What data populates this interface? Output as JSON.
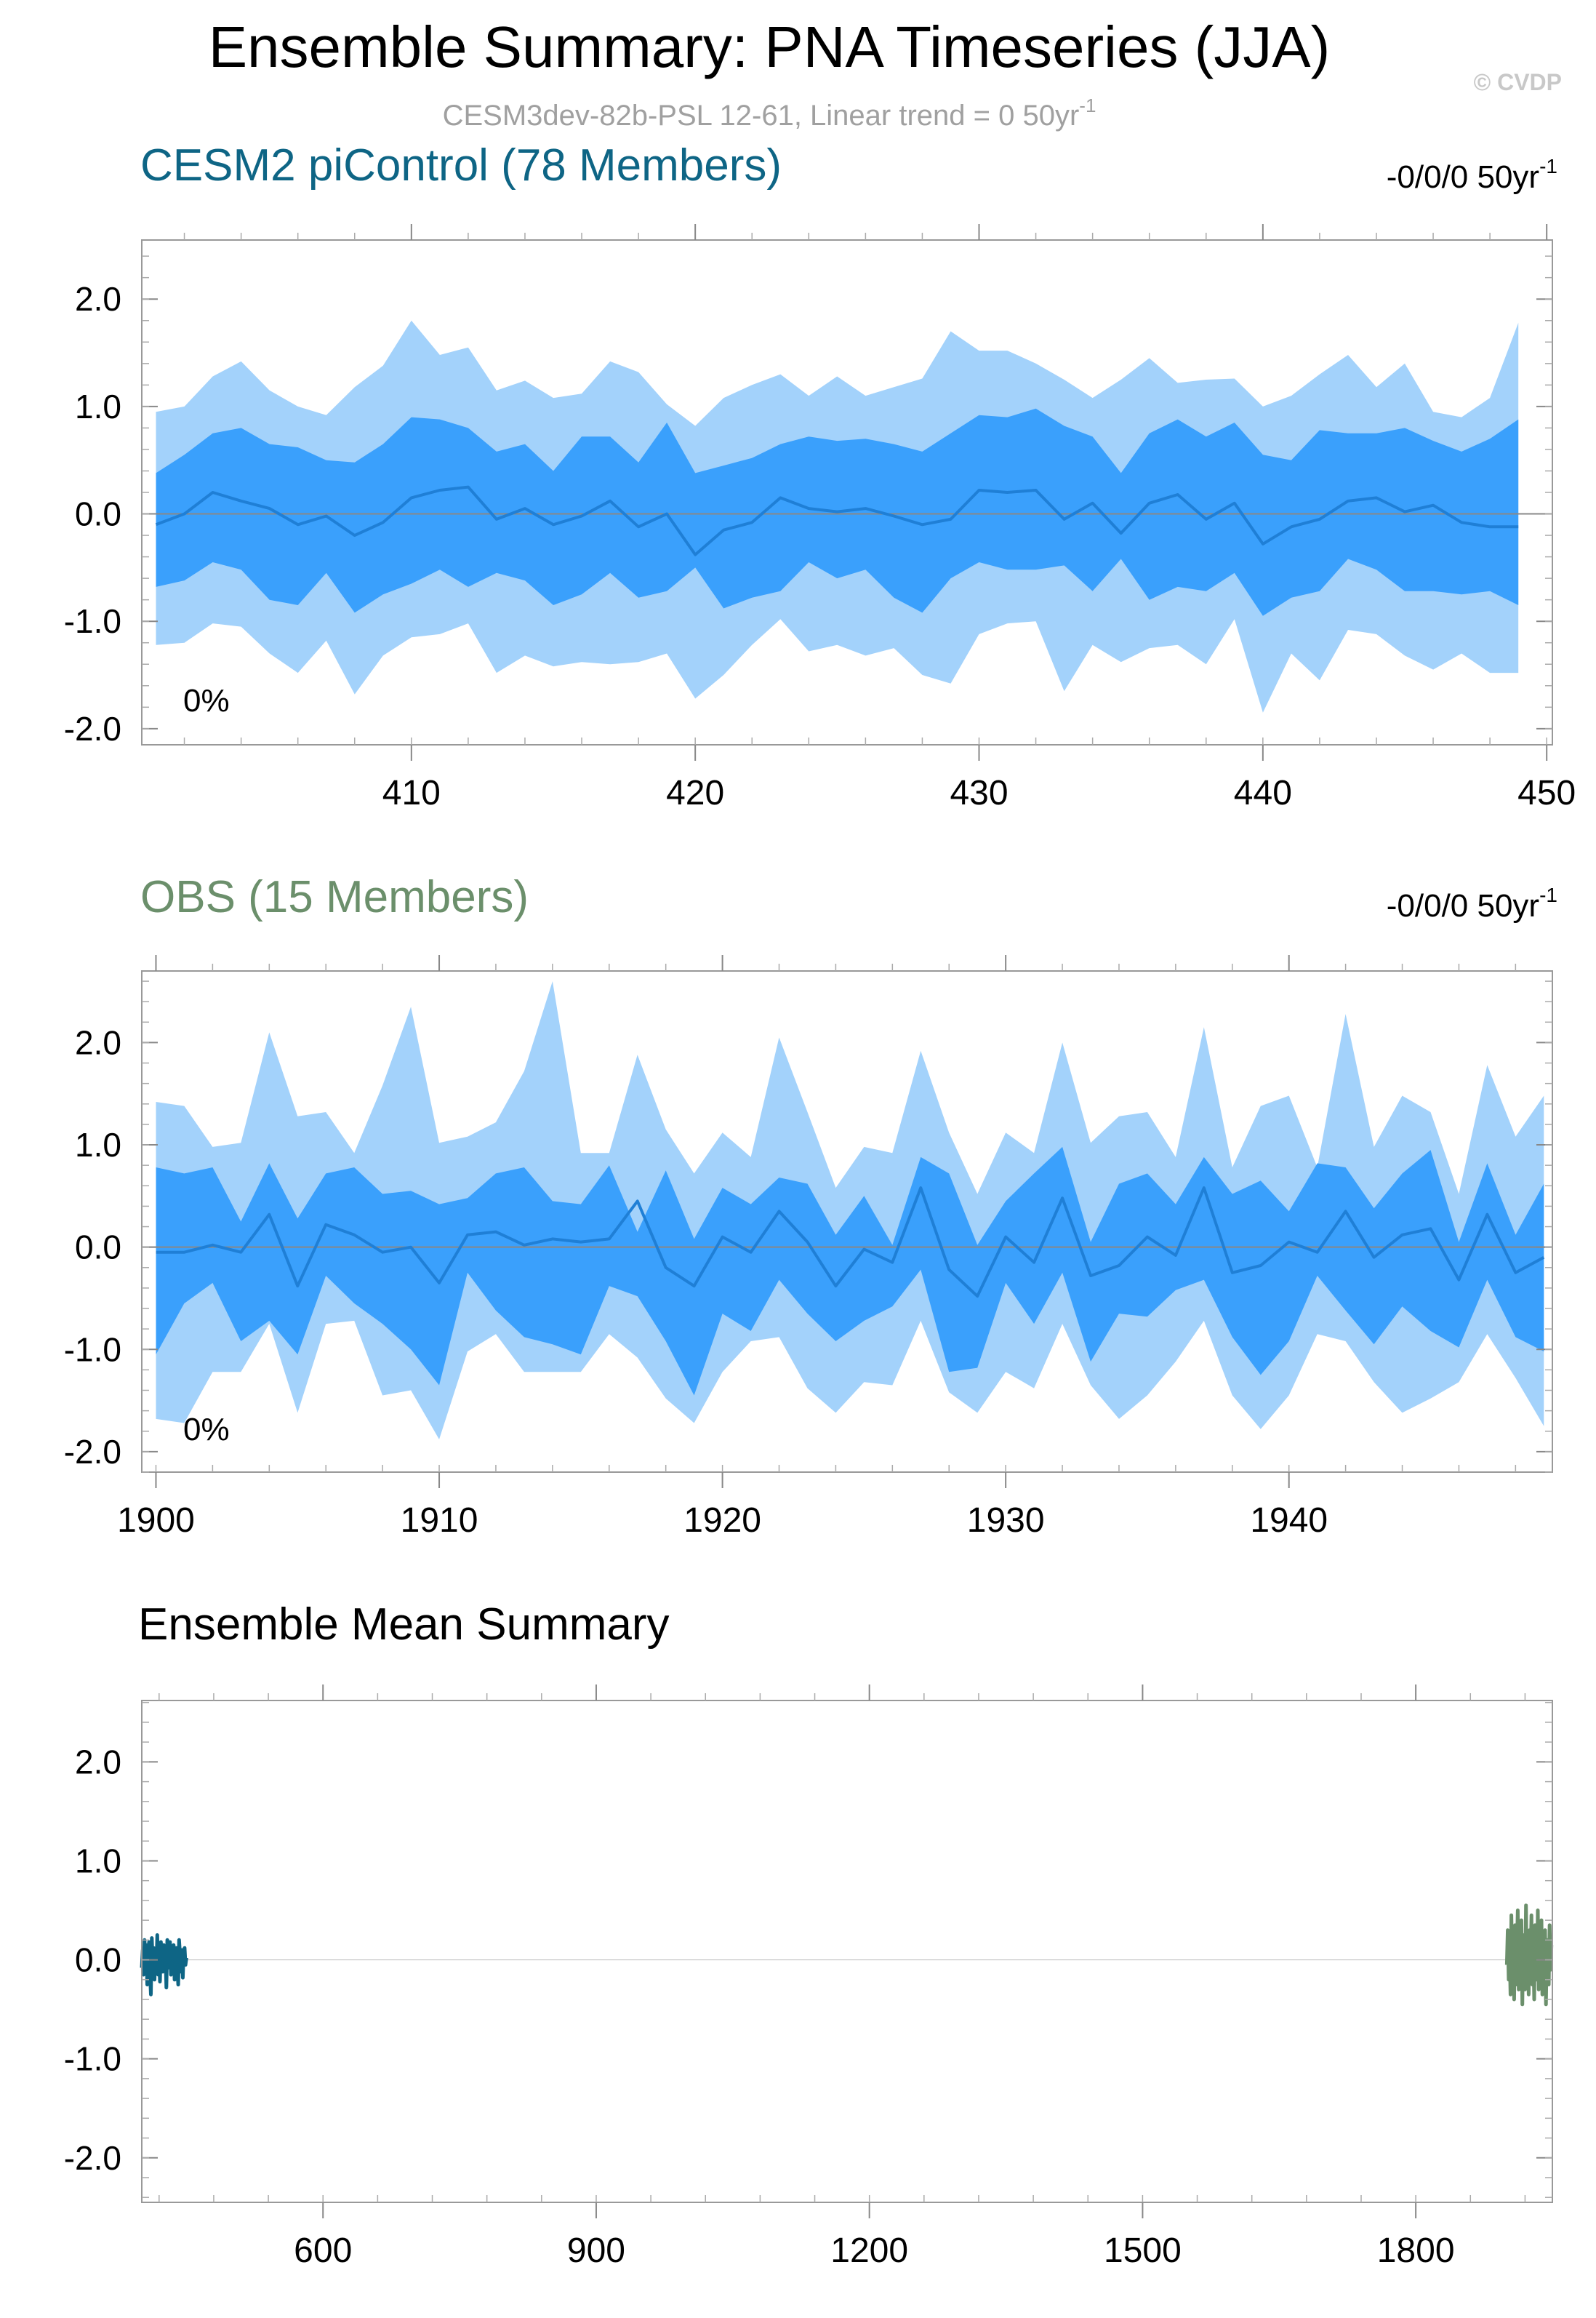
{
  "header": {
    "title": "Ensemble Summary: PNA Timeseries (JJA)",
    "subtitle_text": "CESM3dev-82b-PSL 12-61, Linear trend = 0 50yr",
    "subtitle_sup": "-1",
    "copyright": "© CVDP"
  },
  "colors": {
    "outer_band": "#a3d2fb",
    "inner_band": "#3aa0fc",
    "mean_line": "#1f7fd6",
    "zero_line": "#888888",
    "frame": "#999999",
    "cesm_color": "#0e6585",
    "obs_color": "#6b8f6b"
  },
  "chart_data": [
    {
      "type": "area",
      "name": "cesm2-picontrol-panel",
      "title": "CESM2 piControl (78 Members)",
      "trend_text": "-0/0/0 50yr",
      "trend_sup": "-1",
      "pct_label": "0%",
      "x_start": 401,
      "xlim": [
        400.5,
        450.2
      ],
      "ylim": [
        -2.15,
        2.55
      ],
      "yticks": [
        2,
        1,
        0,
        -1,
        -2
      ],
      "ytick_labels": [
        "2.0",
        "1.0",
        "0.0",
        "-1.0",
        "-2.0"
      ],
      "xticks": [
        410,
        420,
        430,
        440,
        450
      ],
      "xtick_labels": [
        "410",
        "420",
        "430",
        "440",
        "450"
      ],
      "series": [
        {
          "name": "max",
          "values": [
            0.95,
            1.0,
            1.28,
            1.42,
            1.15,
            1.0,
            0.92,
            1.18,
            1.38,
            1.8,
            1.48,
            1.55,
            1.15,
            1.24,
            1.08,
            1.12,
            1.42,
            1.32,
            1.02,
            0.82,
            1.08,
            1.2,
            1.3,
            1.1,
            1.28,
            1.1,
            1.18,
            1.26,
            1.7,
            1.52,
            1.52,
            1.4,
            1.25,
            1.08,
            1.25,
            1.45,
            1.22,
            1.25,
            1.26,
            1.0,
            1.1,
            1.3,
            1.48,
            1.18,
            1.4,
            0.95,
            0.9,
            1.08,
            1.78
          ]
        },
        {
          "name": "p84",
          "values": [
            0.38,
            0.55,
            0.75,
            0.8,
            0.65,
            0.62,
            0.5,
            0.48,
            0.65,
            0.9,
            0.88,
            0.8,
            0.58,
            0.65,
            0.4,
            0.72,
            0.72,
            0.48,
            0.85,
            0.38,
            0.45,
            0.52,
            0.65,
            0.72,
            0.68,
            0.7,
            0.65,
            0.58,
            0.75,
            0.92,
            0.9,
            0.98,
            0.82,
            0.72,
            0.38,
            0.75,
            0.88,
            0.72,
            0.85,
            0.55,
            0.5,
            0.78,
            0.75,
            0.75,
            0.8,
            0.68,
            0.58,
            0.7,
            0.88
          ]
        },
        {
          "name": "mean",
          "values": [
            -0.1,
            0.0,
            0.2,
            0.12,
            0.05,
            -0.1,
            -0.02,
            -0.2,
            -0.08,
            0.15,
            0.22,
            0.25,
            -0.05,
            0.05,
            -0.1,
            -0.02,
            0.12,
            -0.12,
            0.0,
            -0.38,
            -0.15,
            -0.08,
            0.15,
            0.05,
            0.02,
            0.05,
            -0.02,
            -0.1,
            -0.05,
            0.22,
            0.2,
            0.22,
            -0.05,
            0.1,
            -0.18,
            0.1,
            0.18,
            -0.05,
            0.1,
            -0.28,
            -0.12,
            -0.05,
            0.12,
            0.15,
            0.02,
            0.08,
            -0.08,
            -0.12,
            -0.12
          ]
        },
        {
          "name": "p16",
          "values": [
            -0.68,
            -0.62,
            -0.45,
            -0.52,
            -0.8,
            -0.85,
            -0.55,
            -0.92,
            -0.75,
            -0.65,
            -0.52,
            -0.68,
            -0.55,
            -0.62,
            -0.85,
            -0.75,
            -0.55,
            -0.78,
            -0.72,
            -0.5,
            -0.88,
            -0.78,
            -0.72,
            -0.45,
            -0.6,
            -0.52,
            -0.78,
            -0.92,
            -0.6,
            -0.45,
            -0.52,
            -0.52,
            -0.48,
            -0.72,
            -0.42,
            -0.8,
            -0.68,
            -0.72,
            -0.55,
            -0.95,
            -0.78,
            -0.72,
            -0.42,
            -0.52,
            -0.72,
            -0.72,
            -0.75,
            -0.72,
            -0.85
          ]
        },
        {
          "name": "min",
          "values": [
            -1.22,
            -1.2,
            -1.02,
            -1.05,
            -1.3,
            -1.48,
            -1.18,
            -1.68,
            -1.32,
            -1.15,
            -1.12,
            -1.02,
            -1.48,
            -1.32,
            -1.42,
            -1.38,
            -1.4,
            -1.38,
            -1.3,
            -1.72,
            -1.5,
            -1.22,
            -0.98,
            -1.28,
            -1.22,
            -1.32,
            -1.25,
            -1.5,
            -1.58,
            -1.12,
            -1.02,
            -1.0,
            -1.65,
            -1.22,
            -1.38,
            -1.25,
            -1.22,
            -1.4,
            -0.98,
            -1.85,
            -1.3,
            -1.55,
            -1.08,
            -1.12,
            -1.32,
            -1.45,
            -1.3,
            -1.48,
            -1.48
          ]
        }
      ]
    },
    {
      "type": "area",
      "name": "obs-panel",
      "title": "OBS (15 Members)",
      "trend_text": "-0/0/0 50yr",
      "trend_sup": "-1",
      "pct_label": "0%",
      "x_start": 1900,
      "xlim": [
        1899.5,
        1949.3
      ],
      "ylim": [
        -2.2,
        2.7
      ],
      "yticks": [
        2,
        1,
        0,
        -1,
        -2
      ],
      "ytick_labels": [
        "2.0",
        "1.0",
        "0.0",
        "-1.0",
        "-2.0"
      ],
      "xticks": [
        1900,
        1910,
        1920,
        1930,
        1940
      ],
      "xtick_labels": [
        "1900",
        "1910",
        "1920",
        "1930",
        "1940"
      ],
      "series": [
        {
          "name": "max",
          "values": [
            1.42,
            1.38,
            0.98,
            1.02,
            2.1,
            1.28,
            1.32,
            0.92,
            1.58,
            2.35,
            1.02,
            1.08,
            1.22,
            1.72,
            2.6,
            0.92,
            0.92,
            1.88,
            1.15,
            0.72,
            1.12,
            0.88,
            2.05,
            1.32,
            0.58,
            0.98,
            0.92,
            1.92,
            1.12,
            0.52,
            1.12,
            0.92,
            2.0,
            1.02,
            1.28,
            1.32,
            0.88,
            2.15,
            0.78,
            1.38,
            1.48,
            0.78,
            2.28,
            0.98,
            1.48,
            1.32,
            0.52,
            1.78,
            1.08,
            1.48
          ]
        },
        {
          "name": "p84",
          "values": [
            0.78,
            0.72,
            0.78,
            0.25,
            0.82,
            0.28,
            0.72,
            0.78,
            0.52,
            0.55,
            0.42,
            0.48,
            0.72,
            0.78,
            0.45,
            0.42,
            0.8,
            0.15,
            0.75,
            0.08,
            0.58,
            0.42,
            0.68,
            0.62,
            0.12,
            0.5,
            0.02,
            0.88,
            0.72,
            0.02,
            0.45,
            0.72,
            0.98,
            0.05,
            0.62,
            0.72,
            0.42,
            0.88,
            0.52,
            0.65,
            0.35,
            0.82,
            0.78,
            0.38,
            0.72,
            0.95,
            0.05,
            0.82,
            0.12,
            0.62
          ]
        },
        {
          "name": "mean",
          "values": [
            -0.05,
            -0.05,
            0.02,
            -0.05,
            0.32,
            -0.38,
            0.22,
            0.12,
            -0.05,
            0.0,
            -0.35,
            0.12,
            0.15,
            0.02,
            0.08,
            0.05,
            0.08,
            0.45,
            -0.2,
            -0.38,
            0.1,
            -0.05,
            0.35,
            0.05,
            -0.38,
            -0.02,
            -0.15,
            0.58,
            -0.22,
            -0.48,
            0.1,
            -0.15,
            0.48,
            -0.28,
            -0.18,
            0.1,
            -0.08,
            0.58,
            -0.25,
            -0.18,
            0.05,
            -0.05,
            0.35,
            -0.1,
            0.12,
            0.18,
            -0.32,
            0.32,
            -0.25,
            -0.1
          ]
        },
        {
          "name": "p16",
          "values": [
            -1.05,
            -0.55,
            -0.35,
            -0.92,
            -0.72,
            -1.05,
            -0.28,
            -0.55,
            -0.75,
            -1.0,
            -1.35,
            -0.25,
            -0.62,
            -0.88,
            -0.95,
            -1.05,
            -0.38,
            -0.48,
            -0.92,
            -1.45,
            -0.65,
            -0.82,
            -0.32,
            -0.65,
            -0.92,
            -0.72,
            -0.58,
            -0.22,
            -1.22,
            -1.18,
            -0.35,
            -0.75,
            -0.25,
            -1.12,
            -0.65,
            -0.68,
            -0.42,
            -0.32,
            -0.88,
            -1.25,
            -0.92,
            -0.28,
            -0.62,
            -0.95,
            -0.58,
            -0.82,
            -0.98,
            -0.32,
            -0.88,
            -1.02
          ]
        },
        {
          "name": "min",
          "values": [
            -1.68,
            -1.72,
            -1.22,
            -1.22,
            -0.75,
            -1.62,
            -0.75,
            -0.72,
            -1.45,
            -1.4,
            -1.88,
            -1.02,
            -0.85,
            -1.22,
            -1.22,
            -1.22,
            -0.85,
            -1.08,
            -1.48,
            -1.72,
            -1.22,
            -0.92,
            -0.88,
            -1.38,
            -1.62,
            -1.32,
            -1.35,
            -0.72,
            -1.42,
            -1.62,
            -1.22,
            -1.38,
            -0.75,
            -1.35,
            -1.68,
            -1.45,
            -1.12,
            -0.72,
            -1.45,
            -1.78,
            -1.45,
            -0.85,
            -0.92,
            -1.32,
            -1.62,
            -1.48,
            -1.32,
            -0.85,
            -1.28,
            -1.75
          ]
        }
      ]
    },
    {
      "type": "line",
      "name": "ensemble-mean-panel",
      "title": "Ensemble Mean Summary",
      "xlim": [
        401,
        1950
      ],
      "ylim": [
        -2.45,
        2.62
      ],
      "yticks": [
        2,
        1,
        0,
        -1,
        -2
      ],
      "ytick_labels": [
        "2.0",
        "1.0",
        "0.0",
        "-1.0",
        "-2.0"
      ],
      "xticks": [
        600,
        900,
        1200,
        1500,
        1800
      ],
      "xtick_labels": [
        "600",
        "900",
        "1200",
        "1500",
        "1800"
      ],
      "series": [
        {
          "name": "CESM2 piControl",
          "color_key": "cesm_color",
          "x_start": 401,
          "values": [
            -0.08,
            0.1,
            -0.15,
            0.2,
            -0.05,
            0.15,
            -0.25,
            0.05,
            0.18,
            -0.12,
            -0.35,
            0.22,
            -0.02,
            0.12,
            -0.2,
            0.08,
            -0.1,
            0.25,
            -0.15,
            0.05,
            -0.22,
            0.18,
            0.0,
            -0.12,
            0.15,
            -0.05,
            0.1,
            -0.28,
            0.2,
            -0.08,
            0.05,
            0.18,
            -0.15,
            0.08,
            -0.1,
            0.15,
            -0.2,
            0.02,
            0.12,
            -0.05,
            -0.25,
            0.2,
            0.05,
            -0.12,
            0.1,
            -0.18,
            0.08,
            0.12,
            -0.05,
            0.02
          ]
        },
        {
          "name": "OBS",
          "color_key": "obs_color",
          "x_start": 1900,
          "values": [
            -0.05,
            0.3,
            -0.2,
            0.15,
            -0.35,
            0.45,
            -0.1,
            0.2,
            -0.4,
            0.35,
            -0.25,
            0.1,
            0.5,
            -0.3,
            0.2,
            -0.15,
            0.4,
            -0.45,
            0.25,
            0.05,
            -0.3,
            0.55,
            -0.2,
            0.1,
            -0.35,
            0.3,
            -0.05,
            0.45,
            -0.25,
            0.15,
            -0.4,
            0.35,
            0.0,
            -0.2,
            0.5,
            -0.3,
            0.2,
            -0.1,
            0.4,
            -0.35,
            0.25,
            -0.15,
            0.3,
            -0.45,
            0.2,
            0.05,
            -0.25,
            0.35,
            -0.1,
            0.15
          ]
        }
      ]
    }
  ]
}
